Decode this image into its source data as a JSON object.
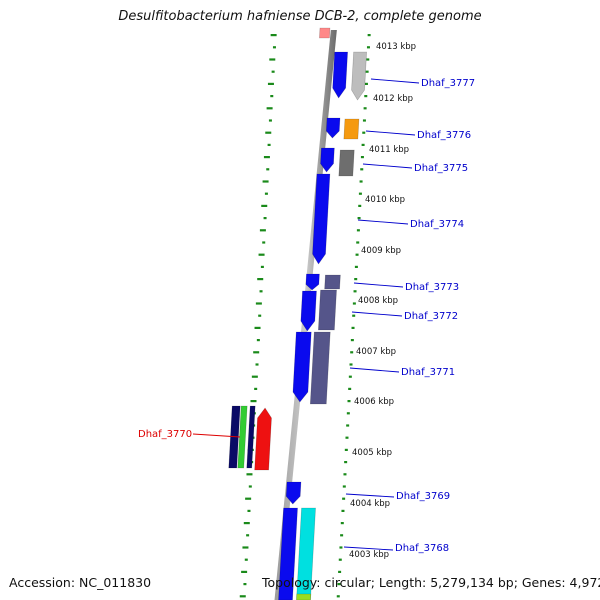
{
  "title": "Desulfitobacterium hafniense DCB-2, complete genome",
  "footer": {
    "accession": "Accession: NC_011830",
    "summary": "Topology: circular; Length: 5,279,134 bp; Genes: 4,972"
  },
  "kbp_labels": [
    "4013 kbp",
    "4012 kbp",
    "4011 kbp",
    "4010 kbp",
    "4009 kbp",
    "4008 kbp",
    "4007 kbp",
    "4006 kbp",
    "4005 kbp",
    "4004 kbp",
    "4003 kbp"
  ],
  "gene_labels": [
    {
      "text": "Dhaf_3777",
      "color": "#0000cc"
    },
    {
      "text": "Dhaf_3776",
      "color": "#0000cc"
    },
    {
      "text": "Dhaf_3775",
      "color": "#0000cc"
    },
    {
      "text": "Dhaf_3774",
      "color": "#0000cc"
    },
    {
      "text": "Dhaf_3773",
      "color": "#0000cc"
    },
    {
      "text": "Dhaf_3772",
      "color": "#0000cc"
    },
    {
      "text": "Dhaf_3771",
      "color": "#0000cc"
    },
    {
      "text": "Dhaf_3770",
      "color": "#dd0000"
    },
    {
      "text": "Dhaf_3769",
      "color": "#0000cc"
    },
    {
      "text": "Dhaf_3768",
      "color": "#0000cc"
    }
  ],
  "colors": {
    "backbone": "#808080",
    "tick": "#1a8a1a",
    "gene_blue": "#0a0aee",
    "gene_gray": "#bdbdbd",
    "gene_orange": "#f59a10",
    "gene_dark_gray": "#6e6e6e",
    "gene_slate": "#55558a",
    "gene_red": "#ee1111",
    "gene_green": "#33cc33",
    "gene_navy": "#0a0a66",
    "gene_cyan": "#00e0e0",
    "gene_pink": "#ff8888",
    "gene_yellowgreen": "#99dd22"
  }
}
